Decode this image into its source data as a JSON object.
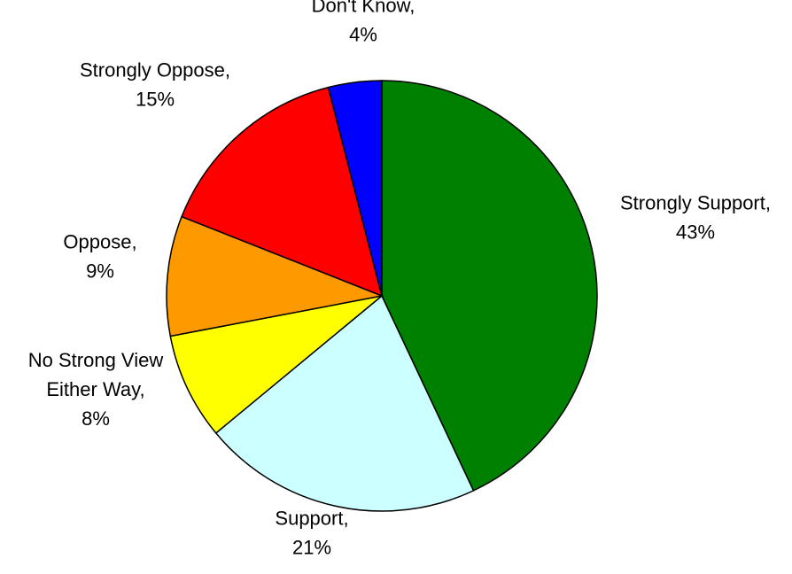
{
  "chart_data": {
    "type": "pie",
    "slices": [
      {
        "name": "Strongly Support,",
        "percent_label": "43%",
        "value": 43,
        "color": "#008000"
      },
      {
        "name": "Support,",
        "percent_label": "21%",
        "value": 21,
        "color": "#ccffff"
      },
      {
        "name": "No Strong View Either Way,",
        "percent_label": "8%",
        "value": 8,
        "color": "#ffff00"
      },
      {
        "name": "Oppose,",
        "percent_label": "9%",
        "value": 9,
        "color": "#ff9900"
      },
      {
        "name": "Strongly Oppose,",
        "percent_label": "15%",
        "value": 15,
        "color": "#ff0000"
      },
      {
        "name": "Don't Know,",
        "percent_label": "4%",
        "value": 4,
        "color": "#0000ff"
      }
    ],
    "start": "12 o'clock",
    "direction": "clockwise",
    "legend": "none",
    "outline_color": "#000000"
  }
}
